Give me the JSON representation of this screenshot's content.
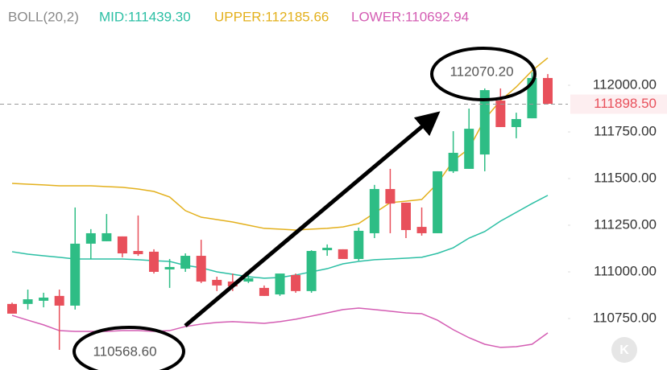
{
  "chart_data": {
    "type": "candlestick",
    "indicator": "BOLL(20,2)",
    "ylim": [
      110474,
      112457
    ],
    "yticks": [
      {
        "value": 112000,
        "label": "112000.00"
      },
      {
        "value": 111750,
        "label": "111750.00"
      },
      {
        "value": 111500,
        "label": "111500.00"
      },
      {
        "value": 111250,
        "label": "111250.00"
      },
      {
        "value": 111000,
        "label": "111000.00"
      },
      {
        "value": 110750,
        "label": "110750.00"
      }
    ],
    "grid": false,
    "up_color": "#2ebd85",
    "down_color": "#e8505b",
    "open": [
      110828,
      110828,
      110845,
      110871,
      110819,
      111151,
      111164,
      111190,
      111112,
      111108,
      111013,
      111017,
      111086,
      110957,
      110948,
      110948,
      110914,
      110879,
      110983,
      110897,
      111116,
      111121,
      111069,
      111207,
      111444,
      111371,
      111241,
      111207,
      111539,
      111552,
      111629,
      111918,
      111776,
      111823,
      112039
    ],
    "high": [
      110835,
      110905,
      110888,
      110905,
      111345,
      111229,
      111310,
      111190,
      111302,
      111121,
      111069,
      111099,
      111172,
      110974,
      110991,
      110991,
      110927,
      110983,
      110991,
      111116,
      111147,
      111121,
      111237,
      111466,
      111552,
      111371,
      111345,
      111539,
      111754,
      111875,
      111983,
      111983,
      111853,
      112069,
      112060
    ],
    "low": [
      110776,
      110798,
      110810,
      110582,
      110798,
      111069,
      111164,
      111078,
      111086,
      110991,
      110914,
      111000,
      110940,
      110897,
      110897,
      110940,
      110871,
      110871,
      110888,
      110888,
      111086,
      111069,
      111060,
      111181,
      111207,
      111181,
      111194,
      111207,
      111530,
      111552,
      111539,
      111776,
      111716,
      111823,
      111897
    ],
    "close": [
      110776,
      110853,
      110862,
      110819,
      111151,
      111207,
      111207,
      111099,
      111095,
      111000,
      111026,
      111086,
      110948,
      110927,
      110922,
      110966,
      110871,
      110991,
      110897,
      111112,
      111129,
      111069,
      111220,
      111444,
      111366,
      111224,
      111207,
      111539,
      111638,
      111767,
      111974,
      111776,
      111819,
      112039,
      111901
    ],
    "series": [
      {
        "name": "MID:111439.30",
        "color": "#2bbfa4",
        "values": [
          111108,
          111095,
          111086,
          111078,
          111069,
          111069,
          111069,
          111069,
          111065,
          111060,
          111056,
          111035,
          111022,
          111000,
          110987,
          110974,
          110966,
          110970,
          110983,
          111000,
          111017,
          111043,
          111056,
          111065,
          111069,
          111073,
          111078,
          111099,
          111129,
          111181,
          111216,
          111272,
          111319,
          111366,
          111410
        ]
      },
      {
        "name": "UPPER:112185.66",
        "color": "#e3b01c",
        "values": [
          111474,
          111470,
          111466,
          111461,
          111461,
          111461,
          111457,
          111453,
          111444,
          111431,
          111401,
          111328,
          111293,
          111280,
          111267,
          111250,
          111233,
          111229,
          111224,
          111229,
          111233,
          111241,
          111259,
          111315,
          111371,
          111379,
          111388,
          111474,
          111595,
          111660,
          111819,
          111918,
          111991,
          112078,
          112147
        ]
      },
      {
        "name": "LOWER:110692.94",
        "color": "#d45db3",
        "values": [
          110767,
          110741,
          110716,
          110685,
          110681,
          110681,
          110681,
          110685,
          110685,
          110681,
          110685,
          110707,
          110720,
          110729,
          110733,
          110729,
          110724,
          110733,
          110746,
          110763,
          110780,
          110798,
          110806,
          110798,
          110789,
          110780,
          110776,
          110741,
          110690,
          110647,
          110612,
          110595,
          110599,
          110612,
          110673
        ]
      }
    ],
    "current_price": {
      "value": 111898.5,
      "label": "111898.50"
    },
    "annotations": [
      "112070.20",
      "110568.60"
    ],
    "watermark": "K"
  }
}
